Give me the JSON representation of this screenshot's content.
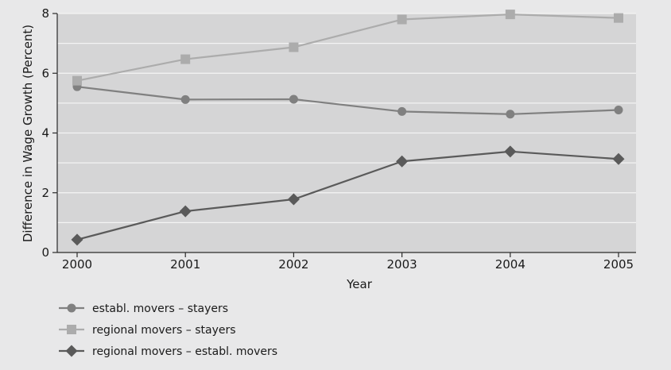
{
  "chart_data": {
    "type": "line",
    "xlabel": "Year",
    "ylabel": "Difference in Wage Growth (Percent)",
    "x": [
      "2000",
      "2001",
      "2002",
      "2003",
      "2004",
      "2005"
    ],
    "ylim": [
      0,
      8
    ],
    "yticks": [
      0,
      2,
      4,
      6,
      8
    ],
    "grid": true,
    "legend_position": "bottom-left",
    "series": [
      {
        "name": "establ. movers – stayers",
        "marker": "circle",
        "color": "#808080",
        "values": [
          5.55,
          5.12,
          5.13,
          4.72,
          4.63,
          4.77
        ]
      },
      {
        "name": "regional movers – stayers",
        "marker": "square",
        "color": "#acacac",
        "values": [
          5.75,
          6.47,
          6.87,
          7.8,
          7.97,
          7.85
        ]
      },
      {
        "name": "regional movers – establ. movers",
        "marker": "diamond",
        "color": "#5a5a5a",
        "values": [
          0.43,
          1.38,
          1.78,
          3.05,
          3.38,
          3.13
        ]
      }
    ]
  },
  "colors": {
    "background": "#e8e8e9",
    "plot_area": "#d5d5d6",
    "gridline": "#f4f4f4",
    "axis": "#2a2a2a"
  }
}
